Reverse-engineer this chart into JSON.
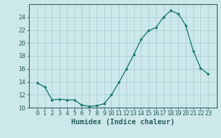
{
  "x": [
    0,
    1,
    2,
    3,
    4,
    5,
    6,
    7,
    8,
    9,
    10,
    11,
    12,
    13,
    14,
    15,
    16,
    17,
    18,
    19,
    20,
    21,
    22,
    23
  ],
  "y": [
    13.8,
    13.2,
    11.2,
    11.3,
    11.2,
    11.2,
    10.4,
    10.2,
    10.3,
    10.6,
    12.0,
    13.9,
    16.0,
    18.2,
    20.6,
    21.9,
    22.4,
    24.0,
    25.0,
    24.5,
    22.7,
    18.8,
    16.1,
    15.2
  ],
  "line_color": "#1a7a6e",
  "marker": "o",
  "marker_size": 2.2,
  "bg_color": "#cce8eb",
  "grid_color": "#aacdd4",
  "xlabel": "Humidex (Indice chaleur)",
  "ylim": [
    10,
    26
  ],
  "yticks": [
    10,
    12,
    14,
    16,
    18,
    20,
    22,
    24
  ],
  "xticks": [
    0,
    1,
    2,
    3,
    4,
    5,
    6,
    7,
    8,
    9,
    10,
    11,
    12,
    13,
    14,
    15,
    16,
    17,
    18,
    19,
    20,
    21,
    22,
    23
  ],
  "tick_fontsize": 6.5,
  "xlabel_fontsize": 7.5,
  "axis_color": "#2a5f5f",
  "linewidth": 1.0
}
